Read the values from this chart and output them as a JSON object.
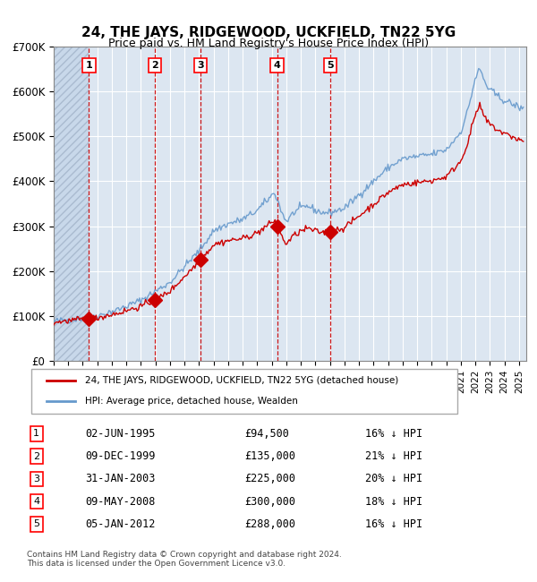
{
  "title": "24, THE JAYS, RIDGEWOOD, UCKFIELD, TN22 5YG",
  "subtitle": "Price paid vs. HM Land Registry's House Price Index (HPI)",
  "xlabel": "",
  "ylabel": "",
  "ylim": [
    0,
    700000
  ],
  "yticks": [
    0,
    100000,
    200000,
    300000,
    400000,
    500000,
    600000,
    700000
  ],
  "ytick_labels": [
    "£0",
    "£100K",
    "£200K",
    "£300K",
    "£400K",
    "£500K",
    "£600K",
    "£700K"
  ],
  "background_color": "#ffffff",
  "plot_bg_color": "#dce6f1",
  "hatch_color": "#c0cfe0",
  "grid_color": "#ffffff",
  "red_line_color": "#cc0000",
  "blue_line_color": "#6699cc",
  "sale_marker_color": "#cc0000",
  "vline_color": "#cc0000",
  "sale_dates_x": [
    1995.42,
    1999.94,
    2003.08,
    2008.36,
    2012.01
  ],
  "sale_prices_y": [
    94500,
    135000,
    225000,
    300000,
    288000
  ],
  "sale_labels": [
    "1",
    "2",
    "3",
    "4",
    "5"
  ],
  "legend_line1": "24, THE JAYS, RIDGEWOOD, UCKFIELD, TN22 5YG (detached house)",
  "legend_line2": "HPI: Average price, detached house, Wealden",
  "table_data": [
    [
      "1",
      "02-JUN-1995",
      "£94,500",
      "16% ↓ HPI"
    ],
    [
      "2",
      "09-DEC-1999",
      "£135,000",
      "21% ↓ HPI"
    ],
    [
      "3",
      "31-JAN-2003",
      "£225,000",
      "20% ↓ HPI"
    ],
    [
      "4",
      "09-MAY-2008",
      "£300,000",
      "18% ↓ HPI"
    ],
    [
      "5",
      "05-JAN-2012",
      "£288,000",
      "16% ↓ HPI"
    ]
  ],
  "footnote": "Contains HM Land Registry data © Crown copyright and database right 2024.\nThis data is licensed under the Open Government Licence v3.0.",
  "xmin": 1993.0,
  "xmax": 2025.5,
  "hatch_xmax": 1995.42
}
